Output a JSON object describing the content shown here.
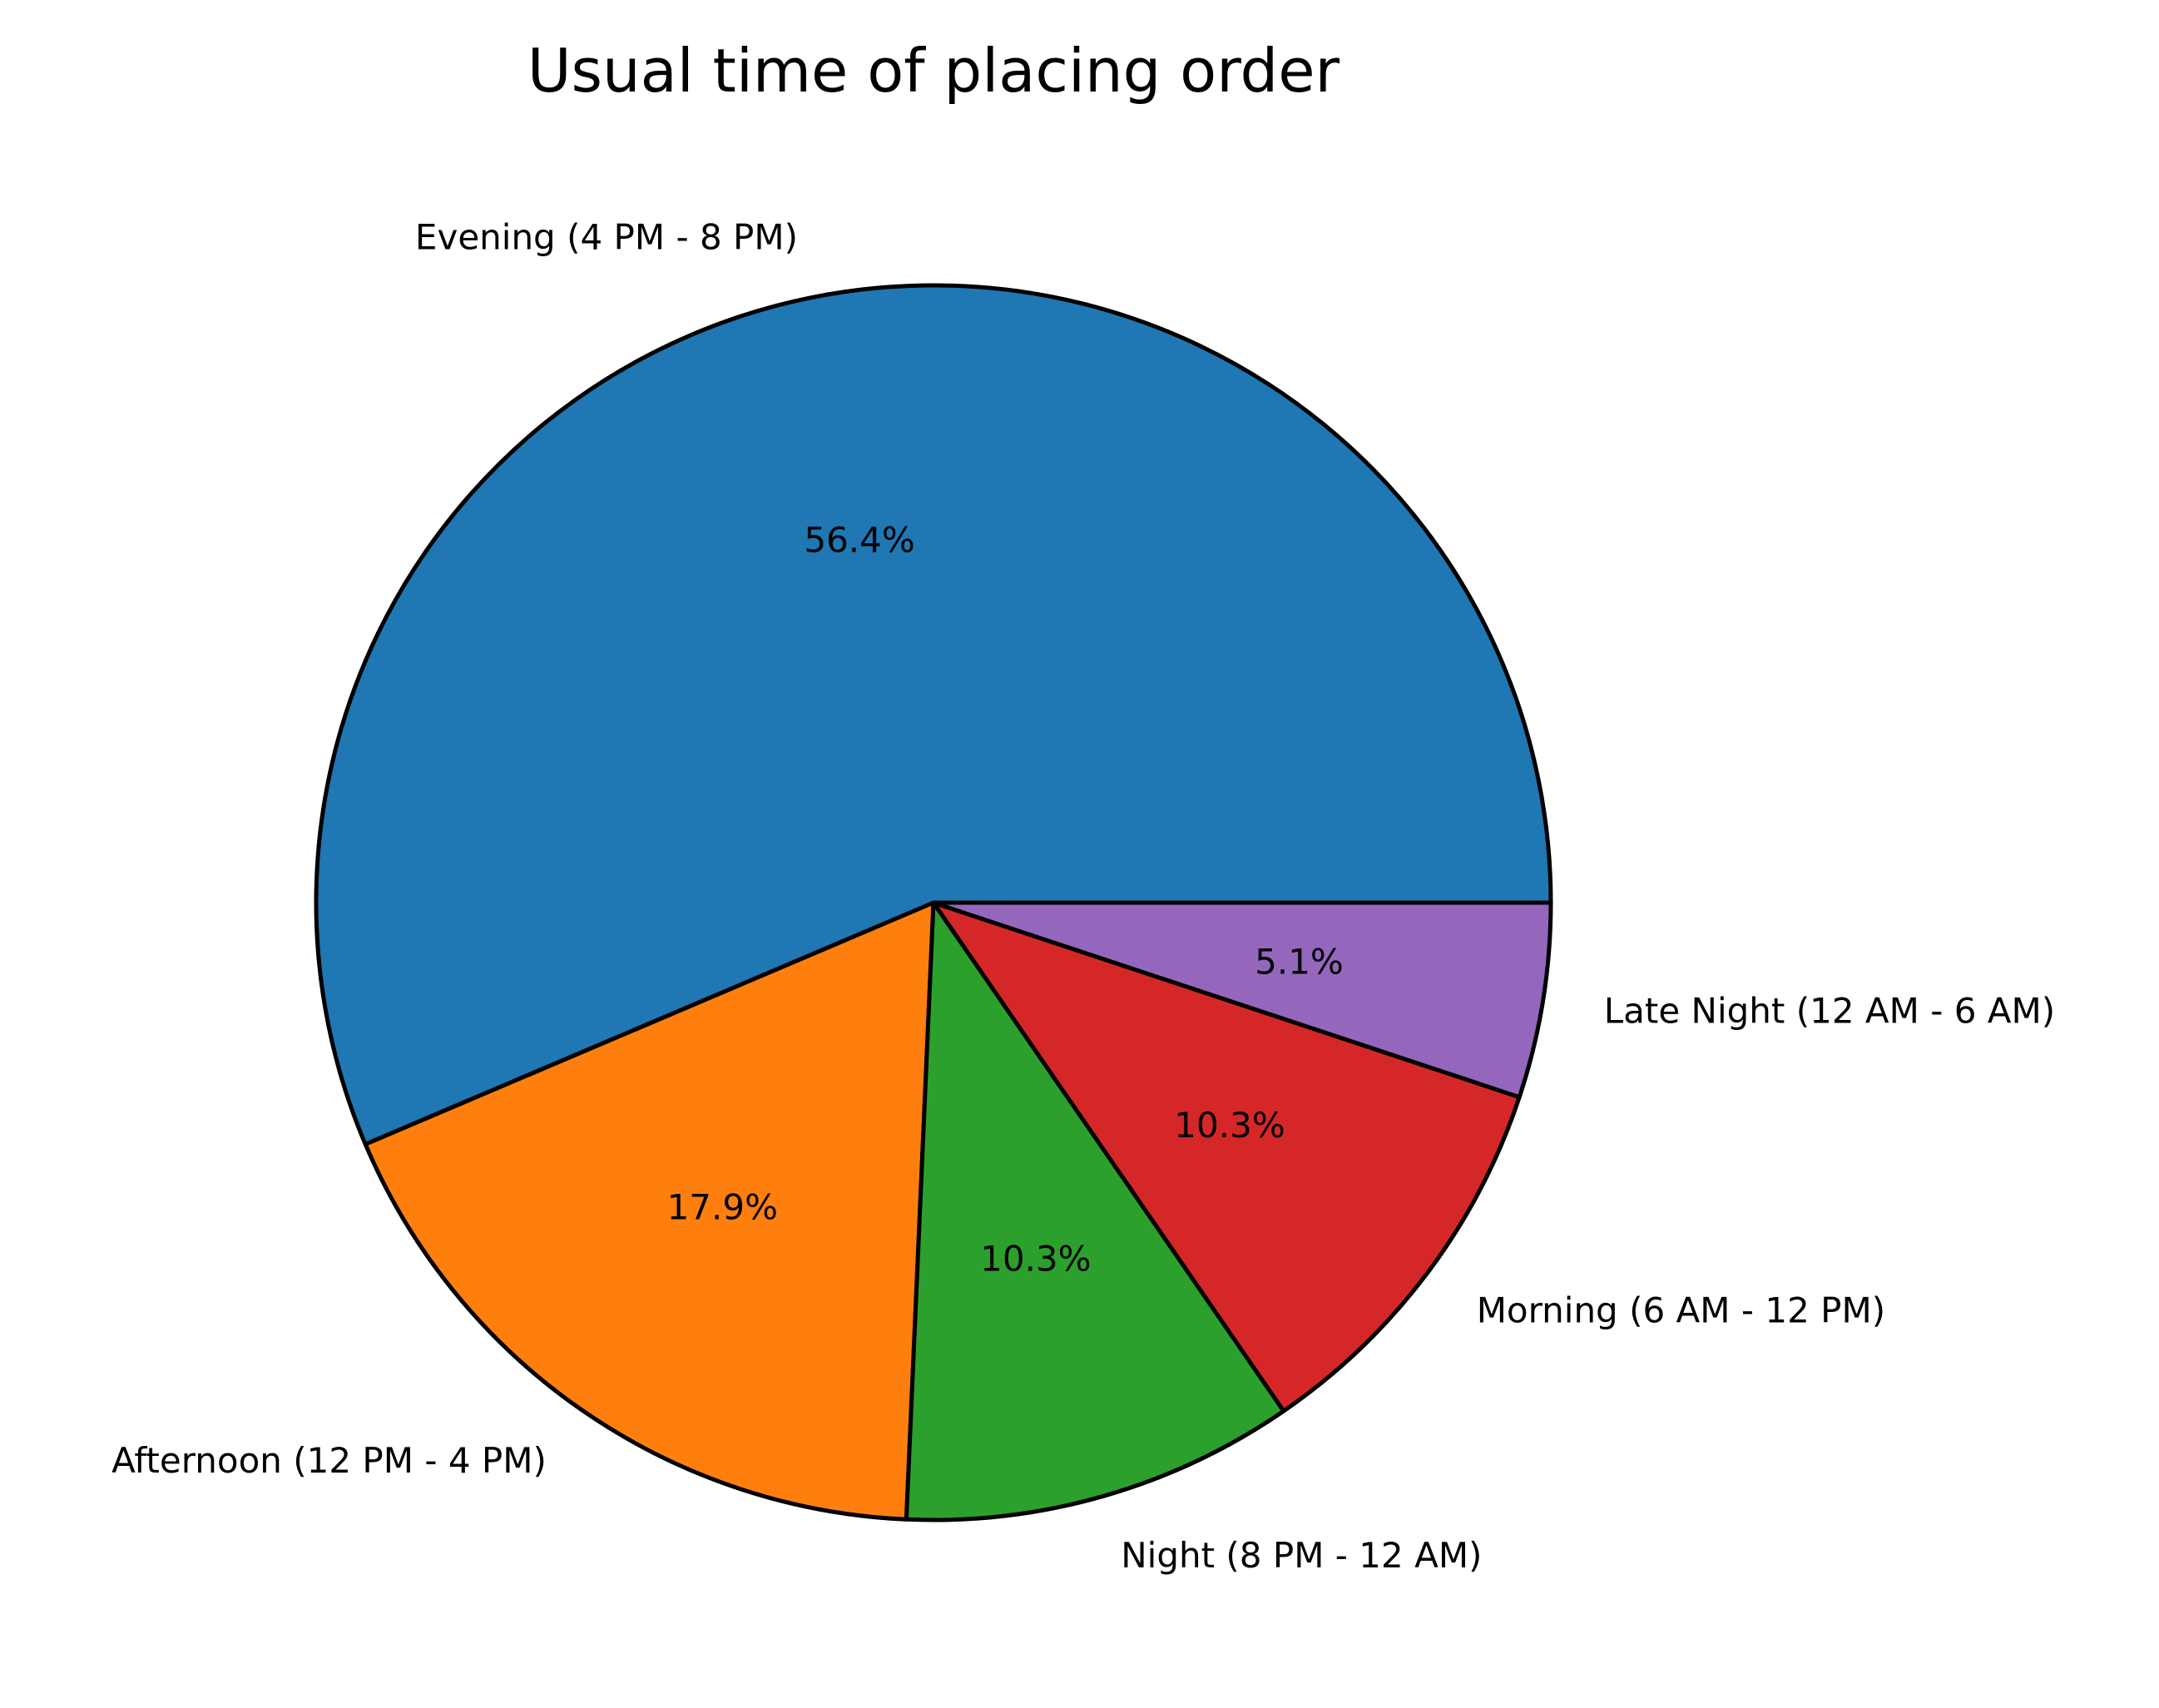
{
  "chart_data": {
    "type": "pie",
    "title": "Usual time of placing order",
    "start_angle_deg": 0,
    "direction": "counterclockwise",
    "slices": [
      {
        "label": "Evening (4 PM - 8 PM)",
        "value": 56.4,
        "pct_label": "56.4%",
        "color": "#1f77b4"
      },
      {
        "label": "Afternoon (12 PM - 4 PM)",
        "value": 17.9,
        "pct_label": "17.9%",
        "color": "#ff7f0e"
      },
      {
        "label": "Night (8 PM - 12 AM)",
        "value": 10.3,
        "pct_label": "10.3%",
        "color": "#2ca02c"
      },
      {
        "label": "Morning (6 AM - 12 PM)",
        "value": 10.3,
        "pct_label": "10.3%",
        "color": "#d62728"
      },
      {
        "label": "Late Night (12 AM - 6 AM)",
        "value": 5.1,
        "pct_label": "5.1%",
        "color": "#9467bd"
      }
    ]
  }
}
